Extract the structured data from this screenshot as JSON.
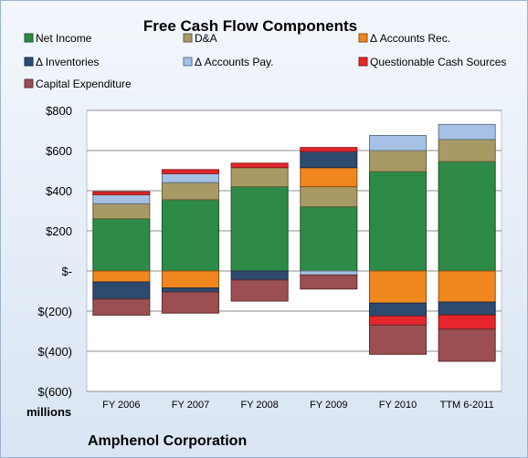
{
  "chart_data": {
    "type": "bar",
    "stacked": true,
    "title": "Free Cash Flow Components",
    "categories": [
      "FY 2006",
      "FY 2007",
      "FY 2008",
      "FY 2009",
      "FY 2010",
      "TTM 6-2011"
    ],
    "ylim": [
      -600,
      800
    ],
    "yticks": [
      800,
      600,
      400,
      200,
      0,
      -200,
      -400,
      -600
    ],
    "ytick_labels": [
      "$800",
      "$600",
      "$400",
      "$200",
      "$-",
      "$(200)",
      "$(400)",
      "$(600)"
    ],
    "unit_label": "millions",
    "company": "Amphenol Corporation",
    "grid": true,
    "legend_position": "top",
    "series": [
      {
        "name": "Net Income",
        "color": "#2e8b47",
        "values": [
          260,
          355,
          420,
          320,
          495,
          545
        ]
      },
      {
        "name": "D&A",
        "color": "#a89a64",
        "values": [
          75,
          85,
          95,
          100,
          105,
          110
        ]
      },
      {
        "name": "Δ Accounts Rec.",
        "color": "#f0861e",
        "values": [
          -55,
          -85,
          0,
          95,
          -160,
          -155
        ]
      },
      {
        "name": "Δ Inventories",
        "color": "#2e4a6e",
        "values": [
          -85,
          -20,
          -45,
          80,
          -65,
          -65
        ]
      },
      {
        "name": "Δ Accounts Pay.",
        "color": "#a6c1e3",
        "values": [
          45,
          45,
          0,
          -20,
          75,
          75
        ]
      },
      {
        "name": "Questionable Cash Sources",
        "color": "#e4262c",
        "values": [
          15,
          20,
          22,
          20,
          0,
          0
        ]
      },
      {
        "name": "Capital Expenditure",
        "color": "#9b4f52",
        "values": [
          -80,
          -105,
          -105,
          -70,
          -145,
          -160
        ]
      }
    ],
    "extra_negative_segments": [
      {
        "series": "Questionable Cash Sources",
        "category": "FY 2010",
        "value": -45
      },
      {
        "series": "Questionable Cash Sources",
        "category": "TTM 6-2011",
        "value": -70
      }
    ]
  }
}
